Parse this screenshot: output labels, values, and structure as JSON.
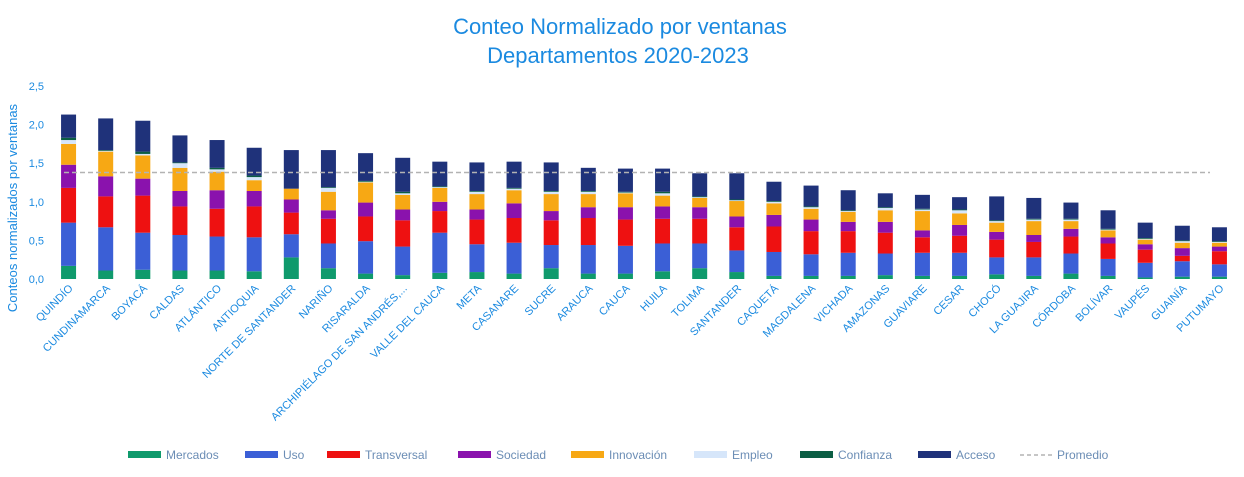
{
  "chart_data": {
    "type": "bar",
    "stacked": true,
    "title_lines": [
      "Conteo Normalizado por ventanas",
      "Departamentos 2020-2023"
    ],
    "ylabel": "Conteos normalizados por ventanas",
    "xlabel": "",
    "ylim": [
      0,
      2.5
    ],
    "yticks": [
      "0,0",
      "0,5",
      "1,0",
      "1,5",
      "2,0",
      "2,5"
    ],
    "ytick_values": [
      0,
      0.5,
      1.0,
      1.5,
      2.0,
      2.5
    ],
    "grid": false,
    "legend_position": "bottom",
    "categories": [
      "QUINDÍO",
      "CUNDINAMARCA",
      "BOYACÁ",
      "CALDAS",
      "ATLÁNTICO",
      "ANTIOQUIA",
      "NORTE DE SANTANDER",
      "NARIÑO",
      "RISARALDA",
      "ARCHIPIÉLAGO DE SAN ANDRÉS,...",
      "VALLE DEL CAUCA",
      "META",
      "CASANARE",
      "SUCRE",
      "ARAUCA",
      "CAUCA",
      "HUILA",
      "TOLIMA",
      "SANTANDER",
      "CAQUETÁ",
      "MAGDALENA",
      "VICHADA",
      "AMAZONAS",
      "GUAVIARE",
      "CESAR",
      "CHOCÓ",
      "LA GUAJIRA",
      "CÓRDOBA",
      "BOLÍVAR",
      "VAUPÉS",
      "GUAINÍA",
      "PUTUMAYO"
    ],
    "series": [
      {
        "name": "Mercados",
        "color": "#0f9a6c",
        "values": [
          0.17,
          0.11,
          0.12,
          0.11,
          0.11,
          0.1,
          0.28,
          0.14,
          0.07,
          0.05,
          0.08,
          0.09,
          0.07,
          0.14,
          0.07,
          0.07,
          0.1,
          0.14,
          0.09,
          0.04,
          0.04,
          0.04,
          0.05,
          0.04,
          0.04,
          0.06,
          0.04,
          0.07,
          0.04,
          0.02,
          0.03,
          0.03
        ]
      },
      {
        "name": "Uso",
        "color": "#3b5fd6",
        "values": [
          0.56,
          0.56,
          0.48,
          0.46,
          0.44,
          0.44,
          0.3,
          0.32,
          0.42,
          0.37,
          0.52,
          0.36,
          0.4,
          0.3,
          0.37,
          0.36,
          0.36,
          0.32,
          0.28,
          0.31,
          0.28,
          0.3,
          0.28,
          0.3,
          0.3,
          0.22,
          0.24,
          0.26,
          0.22,
          0.19,
          0.2,
          0.16
        ]
      },
      {
        "name": "Transversal",
        "color": "#ee1111",
        "values": [
          0.45,
          0.4,
          0.48,
          0.37,
          0.36,
          0.4,
          0.28,
          0.32,
          0.32,
          0.34,
          0.28,
          0.32,
          0.32,
          0.32,
          0.35,
          0.34,
          0.32,
          0.32,
          0.3,
          0.33,
          0.3,
          0.28,
          0.27,
          0.2,
          0.22,
          0.23,
          0.2,
          0.22,
          0.2,
          0.17,
          0.07,
          0.17
        ]
      },
      {
        "name": "Sociedad",
        "color": "#8a12ad",
        "values": [
          0.3,
          0.26,
          0.22,
          0.2,
          0.24,
          0.2,
          0.17,
          0.11,
          0.18,
          0.14,
          0.12,
          0.13,
          0.19,
          0.12,
          0.14,
          0.16,
          0.16,
          0.15,
          0.14,
          0.15,
          0.15,
          0.12,
          0.14,
          0.09,
          0.14,
          0.1,
          0.09,
          0.1,
          0.08,
          0.07,
          0.1,
          0.06
        ]
      },
      {
        "name": "Innovación",
        "color": "#f7a814",
        "values": [
          0.27,
          0.32,
          0.3,
          0.3,
          0.24,
          0.14,
          0.14,
          0.24,
          0.26,
          0.19,
          0.18,
          0.2,
          0.17,
          0.22,
          0.17,
          0.18,
          0.14,
          0.12,
          0.2,
          0.15,
          0.14,
          0.13,
          0.15,
          0.25,
          0.15,
          0.12,
          0.18,
          0.1,
          0.09,
          0.06,
          0.07,
          0.05
        ]
      },
      {
        "name": "Empleo",
        "color": "#d6e6fa",
        "values": [
          0.05,
          0.01,
          0.02,
          0.06,
          0.03,
          0.04,
          0.0,
          0.05,
          0.01,
          0.02,
          0.01,
          0.03,
          0.02,
          0.03,
          0.03,
          0.01,
          0.03,
          0.01,
          0.01,
          0.02,
          0.02,
          0.01,
          0.03,
          0.02,
          0.04,
          0.02,
          0.02,
          0.02,
          0.01,
          0.01,
          0.02,
          0.01
        ]
      },
      {
        "name": "Confianza",
        "color": "#0b5e44",
        "values": [
          0.03,
          0.01,
          0.03,
          0.01,
          0.02,
          0.02,
          0.0,
          0.01,
          0.01,
          0.02,
          0.01,
          0.01,
          0.01,
          0.01,
          0.01,
          0.01,
          0.02,
          0.01,
          0.01,
          0.01,
          0.01,
          0.01,
          0.01,
          0.01,
          0.01,
          0.01,
          0.01,
          0.01,
          0.01,
          0.01,
          0.01,
          0.01
        ]
      },
      {
        "name": "Acceso",
        "color": "#1f327a",
        "values": [
          0.3,
          0.41,
          0.4,
          0.35,
          0.36,
          0.36,
          0.5,
          0.48,
          0.36,
          0.44,
          0.32,
          0.37,
          0.34,
          0.37,
          0.3,
          0.3,
          0.3,
          0.3,
          0.34,
          0.25,
          0.27,
          0.26,
          0.18,
          0.18,
          0.16,
          0.31,
          0.27,
          0.21,
          0.24,
          0.2,
          0.19,
          0.18
        ]
      }
    ],
    "average_line": {
      "name": "Promedio",
      "value": 1.38,
      "color": "#b3b3b3"
    },
    "colors": {
      "title": "#1b8ae0",
      "axis_text": "#1b8ae0",
      "legend_text": "#6b8db5"
    }
  }
}
